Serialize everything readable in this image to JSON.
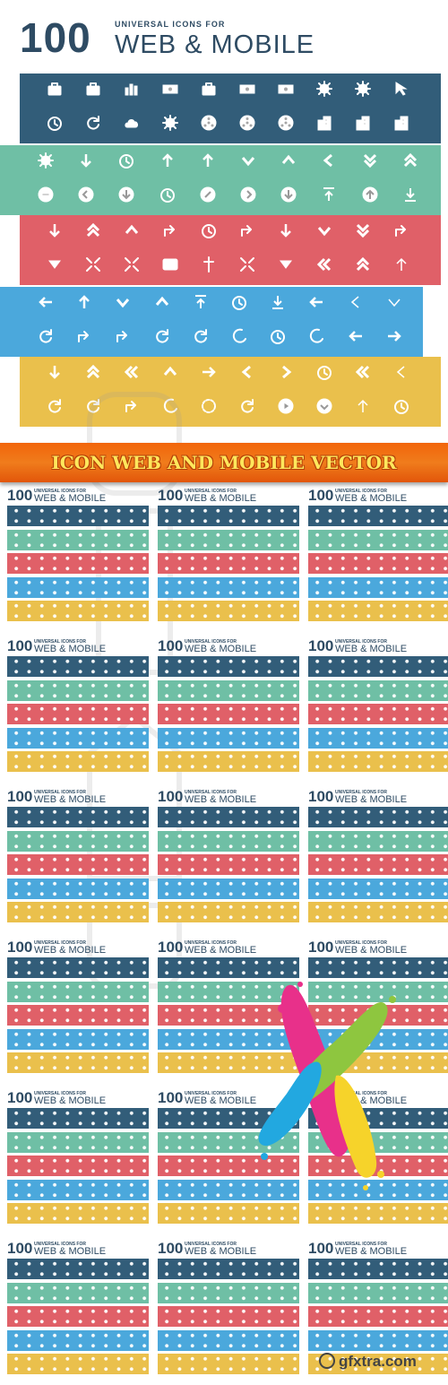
{
  "header": {
    "number": "100",
    "subtitle": "UNIVERSAL ICONS FOR",
    "title": "WEB & MOBILE"
  },
  "colors": {
    "navy": "#325d79",
    "teal": "#6fbfa5",
    "red": "#e06068",
    "blue": "#4ba8dc",
    "yellow": "#eac04c",
    "banner": "#f2650a",
    "banner_text": "#ffe75c",
    "heading": "#2e4b63"
  },
  "bands": [
    {
      "name": "navy",
      "color": "#325d79",
      "row1": [
        "briefcase-icon",
        "case-icon",
        "bar-chart-icon",
        "hand-money-icon",
        "toolbox-icon",
        "cash-icon",
        "money-bill-icon",
        "gear-badge-icon",
        "sun-icon",
        "cursor-icon"
      ],
      "row2": [
        "alarm-clock-icon",
        "refresh-icon",
        "cloud-icon",
        "sun-cloud-icon",
        "film-reel-icon",
        "radiation-icon",
        "hazard-icon",
        "building-icon",
        "office-icon",
        "factory-icon"
      ]
    },
    {
      "name": "teal",
      "color": "#6fbfa5",
      "row1": [
        "gear-icon",
        "arrow-down-icon",
        "clock-icon",
        "arrow-up-left-icon",
        "arrow-up-icon",
        "chevron-down-solid-icon",
        "chevron-up-solid-icon",
        "chevron-left-solid-icon",
        "double-chevron-down-icon",
        "double-chevron-up-icon"
      ],
      "row2": [
        "minus-circle-icon",
        "chevron-left-circle-icon",
        "download-circle-icon",
        "watch-icon",
        "link-circle-icon",
        "chevron-right-circle-icon",
        "arrow-down-circle-icon",
        "upload-icon",
        "arrow-up-circle-icon",
        "download-tray-icon"
      ]
    },
    {
      "name": "red",
      "color": "#e06068",
      "row1": [
        "arrow-down-right-icon",
        "double-chevron-up-icon",
        "chevron-up-icon",
        "arrow-turn-up-icon",
        "stopwatch-icon",
        "arrow-corner-up-icon",
        "arrow-down-icon",
        "chevron-down-icon",
        "double-chevron-down-icon",
        "arrow-turn-down-icon"
      ],
      "row2": [
        "triangle-down-icon",
        "diagonal-arrows-icon",
        "magic-wand-icon",
        "24h-icon",
        "pin-cross-icon",
        "expand-icon",
        "triangle-down-wide-icon",
        "double-chevron-left-icon",
        "triple-chevron-up-icon",
        "arrow-up-thin-icon"
      ]
    },
    {
      "name": "blue",
      "color": "#4ba8dc",
      "row1": [
        "arrow-left-icon",
        "arrow-up-bold-icon",
        "chevron-down-icon",
        "chevron-up-icon",
        "upload-thin-icon",
        "clock-pie-icon",
        "download-thin-icon",
        "arrow-left-bar-icon",
        "chevron-left-thin-icon",
        "chevron-down-thin-icon"
      ],
      "row2": [
        "cycle-square-icon",
        "arrow-corner-right-icon",
        "arrow-uturn-icon",
        "loop-icon",
        "sync-icon",
        "hook-icon",
        "alarm-icon",
        "moon-icon",
        "arrow-left-solid-icon",
        "arrow-right-solid-icon"
      ]
    },
    {
      "name": "yellow",
      "color": "#eac04c",
      "row1": [
        "arrow-down-double-icon",
        "double-chevron-up-bold-icon",
        "double-chevron-left-bold-icon",
        "chevron-up-bold-icon",
        "arrow-right-bold-icon",
        "chevron-left-bold-icon",
        "chevron-right-bold-icon",
        "clock-quarter-icon",
        "double-chevron-left-outline-icon",
        "chevron-left-outline-icon"
      ],
      "row2": [
        "refresh-left-icon",
        "rotate-icon",
        "arrow-curve-icon",
        "arc-icon",
        "dash-circle-icon",
        "reload-icon",
        "play-circle-icon",
        "chevron-down-circle-icon",
        "arrow-up-small-icon",
        "timer-icon"
      ]
    }
  ],
  "banner": {
    "text": "ICON WEB AND MOBILE VECTOR"
  },
  "preview": {
    "number": "100",
    "subtitle": "UNIVERSAL ICONS FOR",
    "title": "WEB & MOBILE",
    "columns": 3,
    "rows": 6
  },
  "watermark": {
    "text": "gfxtra.com"
  }
}
